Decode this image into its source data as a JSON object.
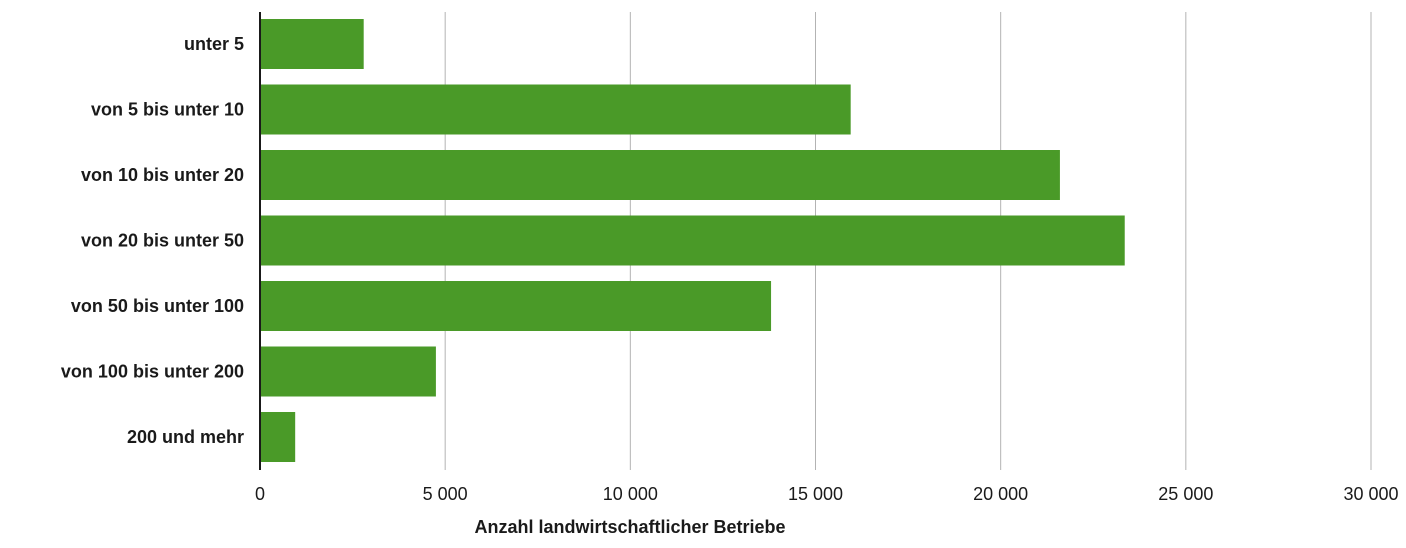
{
  "chart_data": {
    "type": "bar",
    "orientation": "horizontal",
    "categories": [
      "unter 5",
      "von 5 bis unter 10",
      "von 10 bis unter 20",
      "von 20 bis unter 50",
      "von 50 bis unter 100",
      "von 100 bis unter 200",
      "200 und mehr"
    ],
    "values": [
      2800,
      15950,
      21600,
      23350,
      13800,
      4750,
      950
    ],
    "xlim": [
      0,
      30000
    ],
    "x_ticks": [
      0,
      5000,
      10000,
      15000,
      20000,
      25000,
      30000
    ],
    "x_tick_labels": [
      "0",
      "5 000",
      "10 000",
      "15 000",
      "20 000",
      "25 000",
      "30 000"
    ],
    "xlabel": "Anzahl landwirtschaftlicher Betriebe",
    "ylabel": "",
    "title": "",
    "grid": "vertical",
    "legend": "none",
    "bar_color": "#4a9a28",
    "grid_color": "#b3b3b3",
    "axis_color": "#1a1a1a"
  }
}
